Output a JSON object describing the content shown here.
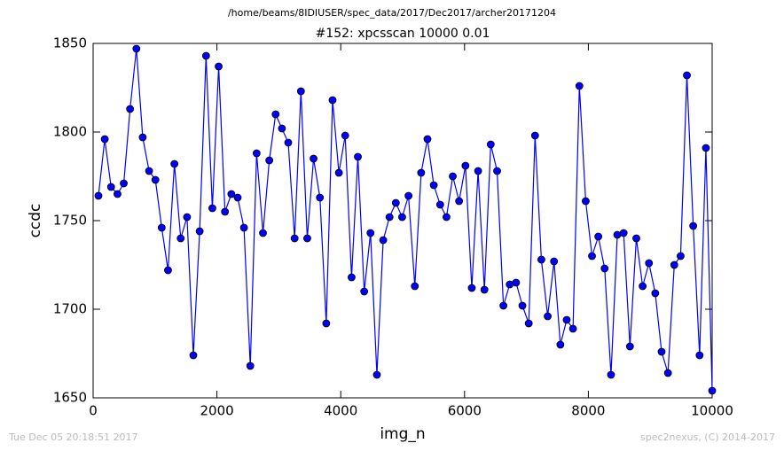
{
  "chart_data": {
    "type": "line",
    "suptitle": "/home/beams/8IDIUSER/spec_data/2017/Dec2017/archer20171204",
    "title": "#152: xpcsscan 10000 0.01",
    "x_label": "img_n",
    "y_label": "ccdc",
    "footer_left": "Tue Dec 05 20:18:51 2017",
    "footer_right": "spec2nexus, (C) 2014-2017",
    "xlim": [
      0,
      10000
    ],
    "xticks": [
      0,
      2000,
      4000,
      6000,
      8000,
      10000
    ],
    "ylim": [
      1650,
      1850
    ],
    "yticks": [
      1650,
      1700,
      1750,
      1800,
      1850
    ],
    "x": [
      86,
      188,
      290,
      393,
      495,
      597,
      699,
      801,
      904,
      1006,
      1108,
      1210,
      1313,
      1415,
      1517,
      1619,
      1721,
      1824,
      1926,
      2028,
      2130,
      2233,
      2335,
      2437,
      2539,
      2641,
      2744,
      2846,
      2948,
      3050,
      3152,
      3255,
      3357,
      3459,
      3561,
      3664,
      3766,
      3868,
      3970,
      4072,
      4175,
      4277,
      4379,
      4481,
      4584,
      4686,
      4788,
      4890,
      4992,
      5095,
      5197,
      5299,
      5401,
      5503,
      5606,
      5708,
      5810,
      5912,
      6015,
      6117,
      6219,
      6321,
      6423,
      6526,
      6628,
      6730,
      6832,
      6935,
      7037,
      7139,
      7241,
      7343,
      7446,
      7548,
      7650,
      7752,
      7855,
      7957,
      8059,
      8161,
      8263,
      8366,
      8468,
      8570,
      8672,
      8775,
      8877,
      8979,
      9081,
      9183,
      9286,
      9388,
      9490,
      9592,
      9694,
      9797,
      9899,
      10000
    ],
    "series": [
      {
        "name": "ccdc",
        "color": "#0000ff",
        "marker_edge": "#000000",
        "values": [
          1764,
          1796,
          1769,
          1765,
          1771,
          1813,
          1847,
          1797,
          1778,
          1773,
          1746,
          1722,
          1782,
          1740,
          1752,
          1674,
          1744,
          1843,
          1757,
          1837,
          1755,
          1765,
          1763,
          1746,
          1668,
          1788,
          1743,
          1784,
          1810,
          1802,
          1794,
          1740,
          1823,
          1740,
          1785,
          1763,
          1692,
          1818,
          1777,
          1798,
          1718,
          1786,
          1710,
          1743,
          1663,
          1739,
          1752,
          1760,
          1752,
          1764,
          1713,
          1777,
          1796,
          1770,
          1759,
          1752,
          1775,
          1761,
          1781,
          1712,
          1778,
          1711,
          1793,
          1778,
          1702,
          1714,
          1715,
          1702,
          1692,
          1798,
          1728,
          1696,
          1727,
          1680,
          1694,
          1689,
          1826,
          1761,
          1730,
          1741,
          1723,
          1663,
          1742,
          1743,
          1679,
          1740,
          1713,
          1726,
          1709,
          1676,
          1664,
          1725,
          1730,
          1832,
          1747,
          1674,
          1791,
          1654
        ]
      }
    ]
  }
}
